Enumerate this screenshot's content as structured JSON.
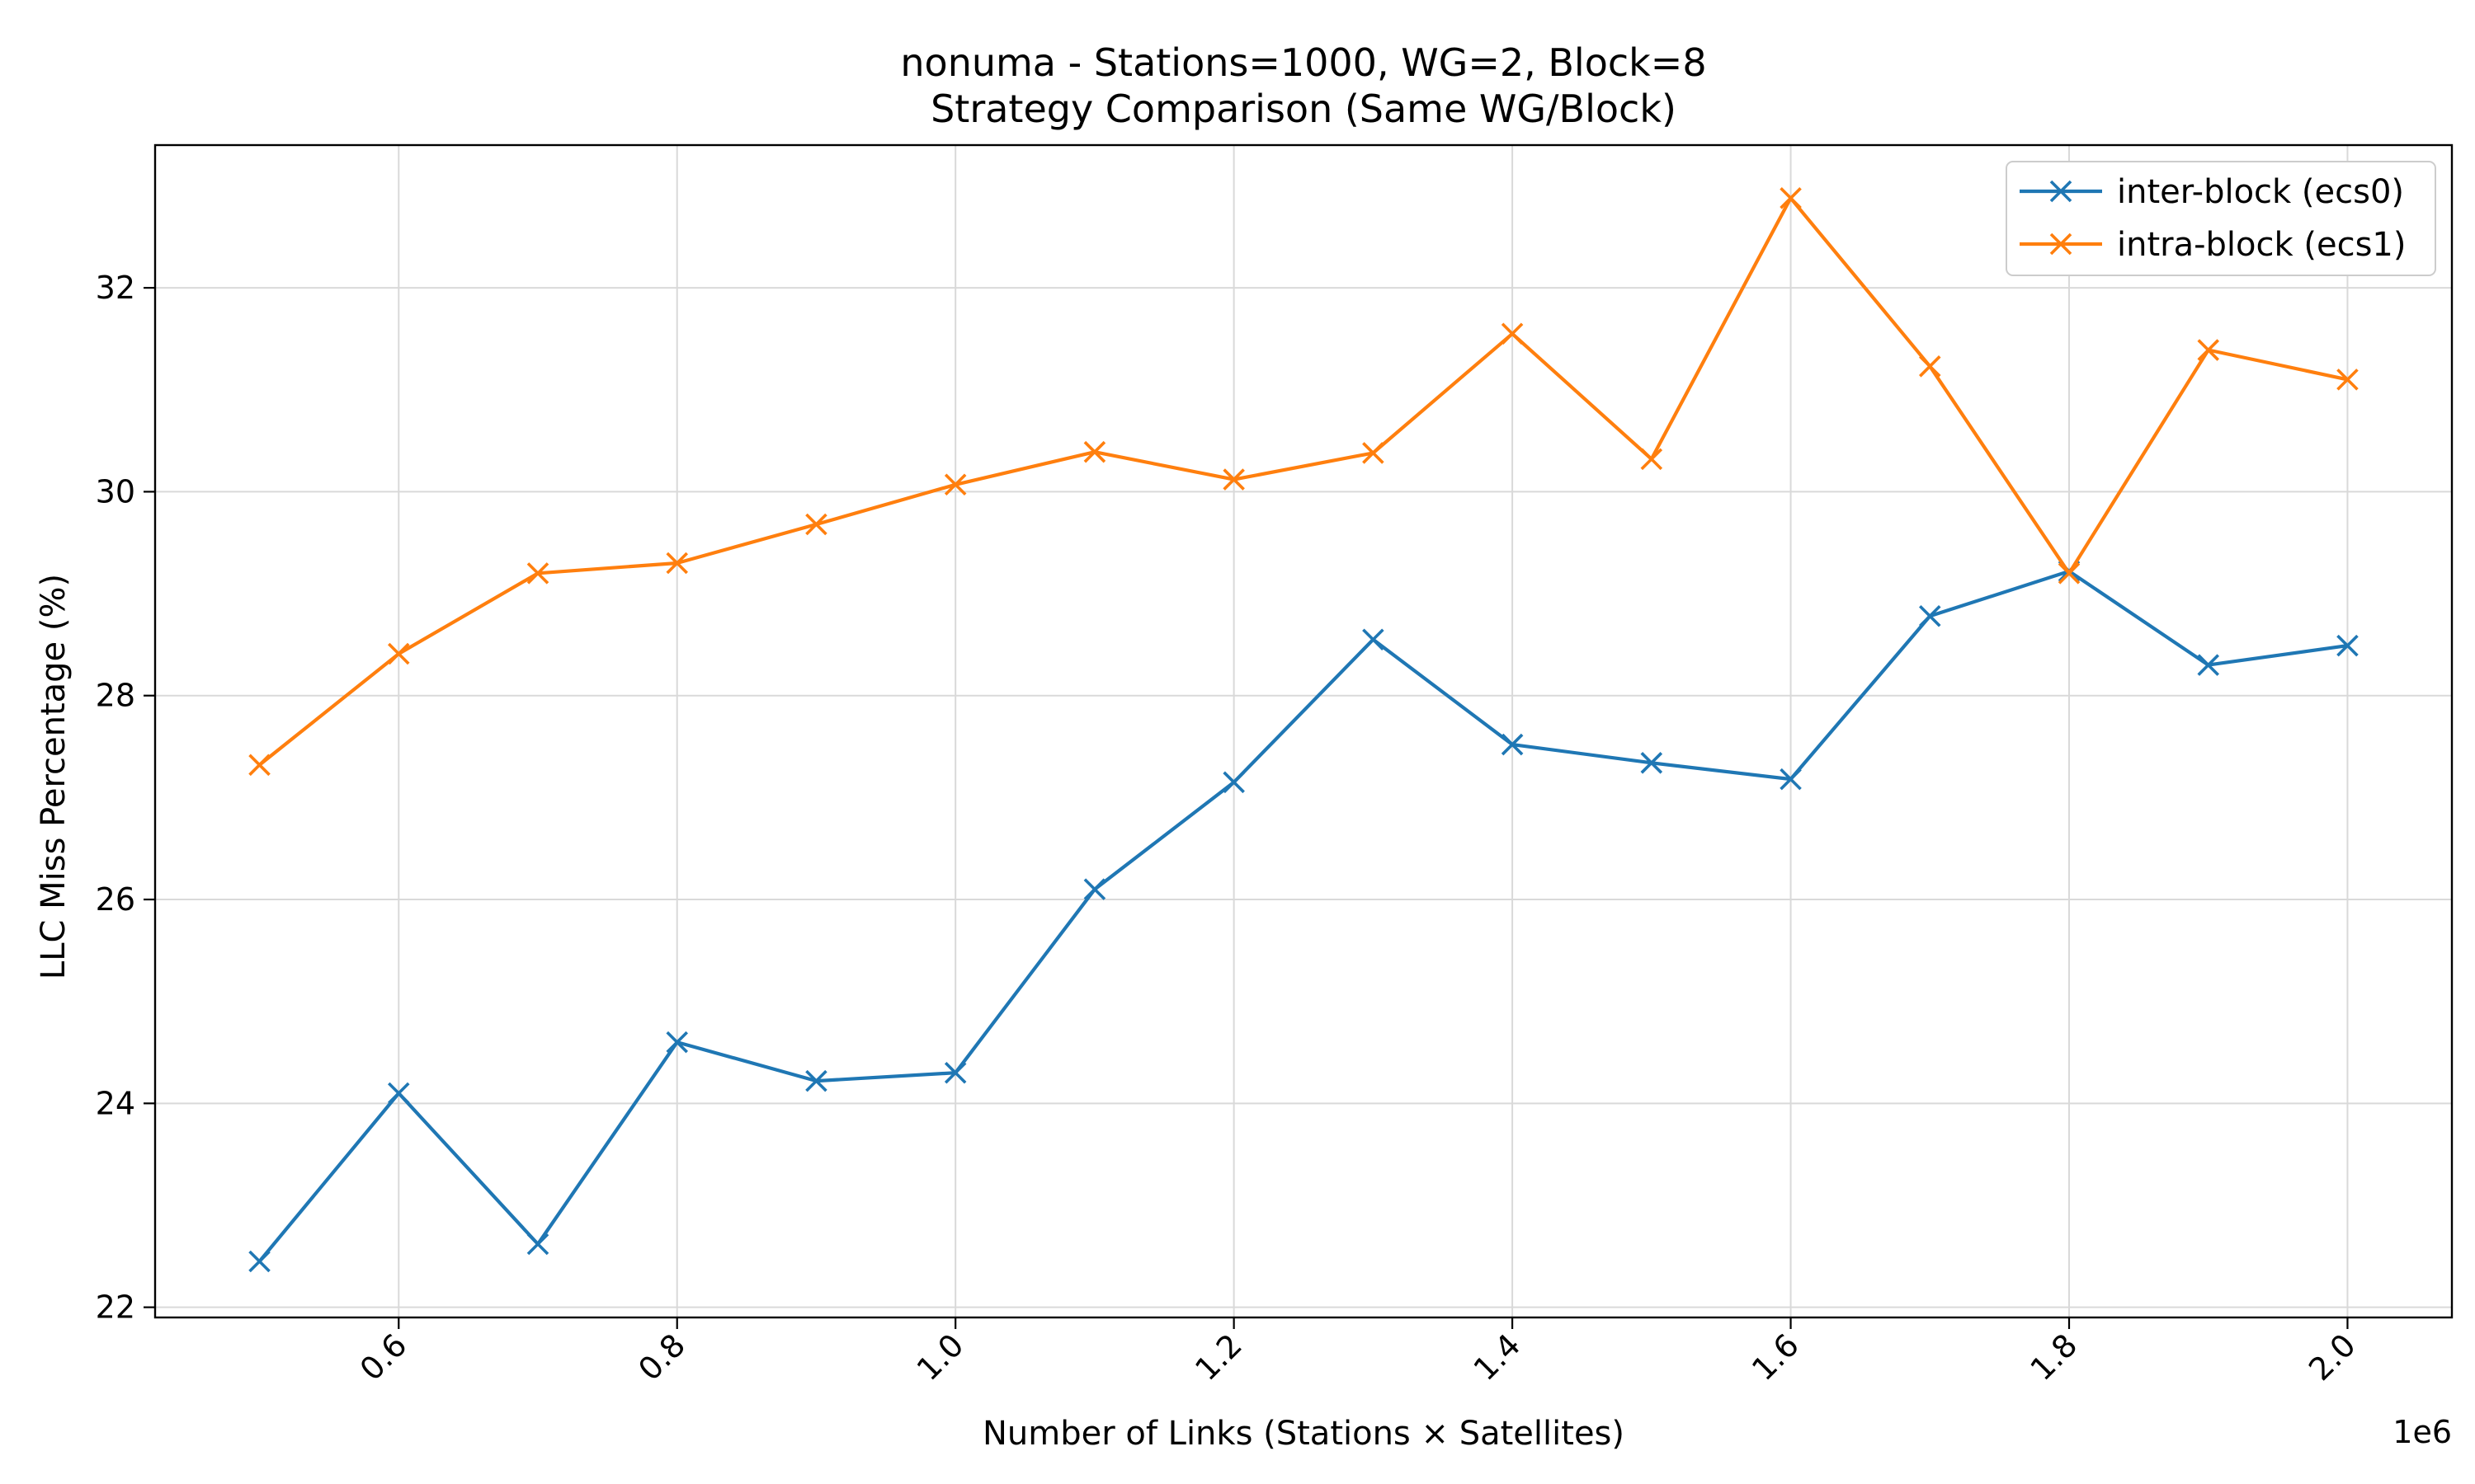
{
  "chart_data": {
    "type": "line",
    "title": "nonuma - Stations=1000, WG=2, Block=8",
    "subtitle": "Strategy Comparison (Same WG/Block)",
    "xlabel": "Number of Links (Stations × Satellites)",
    "ylabel": "LLC Miss Percentage (%)",
    "x_offset_label": "1e6",
    "xlim": [
      0.425,
      2.075
    ],
    "ylim": [
      21.9,
      33.4
    ],
    "x_ticks": [
      0.6,
      0.8,
      1.0,
      1.2,
      1.4,
      1.6,
      1.8,
      2.0
    ],
    "x_tick_labels": [
      "0.6",
      "0.8",
      "1.0",
      "1.2",
      "1.4",
      "1.6",
      "1.8",
      "2.0"
    ],
    "y_ticks": [
      22,
      24,
      26,
      28,
      30,
      32
    ],
    "y_tick_labels": [
      "22",
      "24",
      "26",
      "28",
      "30",
      "32"
    ],
    "grid": true,
    "legend_position": "top-right",
    "x": [
      0.5,
      0.6,
      0.7,
      0.8,
      0.9,
      1.0,
      1.1,
      1.2,
      1.3,
      1.4,
      1.5,
      1.6,
      1.7,
      1.8,
      1.9,
      2.0
    ],
    "series": [
      {
        "name": "inter-block (ecs0)",
        "color": "#1f77b4",
        "marker": "x",
        "values": [
          22.45,
          24.1,
          22.62,
          24.6,
          24.22,
          24.3,
          26.1,
          27.15,
          28.55,
          27.52,
          27.34,
          27.18,
          28.78,
          29.22,
          28.3,
          28.49
        ]
      },
      {
        "name": "intra-block (ecs1)",
        "color": "#ff7f0e",
        "marker": "x",
        "values": [
          27.32,
          28.41,
          29.2,
          29.3,
          29.68,
          30.07,
          30.39,
          30.12,
          30.38,
          31.55,
          30.32,
          32.88,
          31.23,
          29.2,
          31.39,
          31.1
        ]
      }
    ]
  }
}
